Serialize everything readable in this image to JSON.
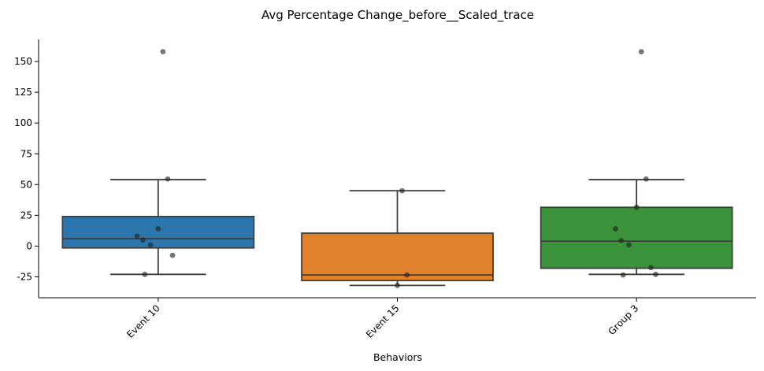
{
  "chart_data": {
    "type": "boxplot",
    "title": "Avg Percentage Change_before__Scaled_trace",
    "xlabel": "Behaviors",
    "ylabel": "",
    "ylim": [
      -42,
      168
    ],
    "yticks": [
      -25,
      0,
      25,
      50,
      75,
      100,
      125,
      150
    ],
    "grid": false,
    "categories": [
      "Event 10",
      "Event 15",
      "Group 3"
    ],
    "colors": {
      "Event 10": "#2b76ad",
      "Event 15": "#e1812c",
      "Group 3": "#3a923a",
      "box_edge": "#3d3d3d",
      "points": "#222222"
    },
    "series": [
      {
        "category": "Event 10",
        "whisker_low": -23,
        "q1": -1.5,
        "median": 6,
        "q3": 24,
        "whisker_high": 54,
        "points": [
          158,
          54.5,
          14,
          8,
          5,
          1,
          -7.5,
          -23
        ]
      },
      {
        "category": "Event 15",
        "whisker_low": -32,
        "q1": -28,
        "median": -23.5,
        "q3": 10.5,
        "whisker_high": 45,
        "points": [
          45,
          -23.5,
          -32
        ]
      },
      {
        "category": "Group 3",
        "whisker_low": -23,
        "q1": -18,
        "median": 4,
        "q3": 31.5,
        "whisker_high": 54,
        "points": [
          158,
          54.5,
          31.5,
          14,
          4.5,
          1,
          -17.5,
          -23.5,
          -23
        ]
      }
    ]
  }
}
